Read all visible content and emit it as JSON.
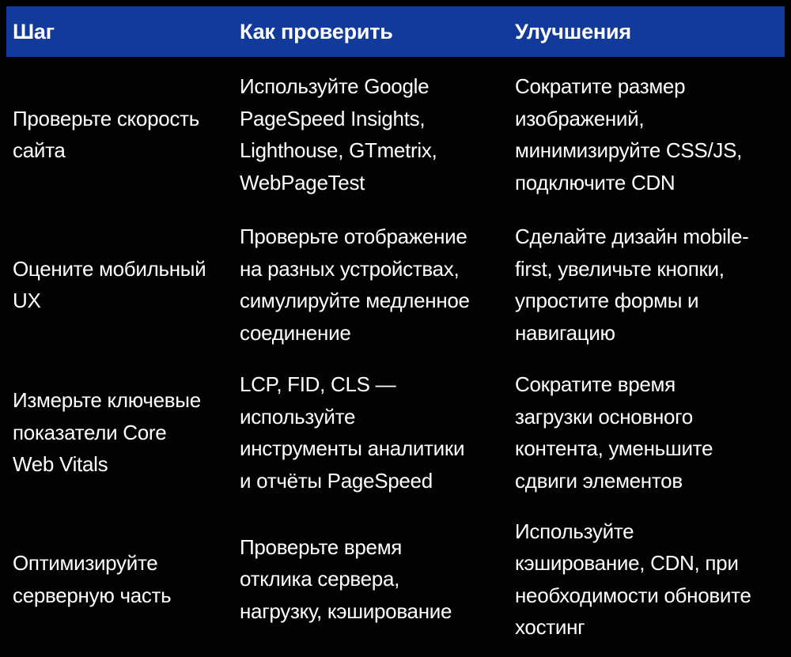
{
  "table": {
    "title": "Website performance audit steps table",
    "colors": {
      "header_bg": "#123A9B",
      "body_bg": "#020202",
      "text": "#FFFFFF"
    },
    "columns": [
      {
        "label": "Шаг"
      },
      {
        "label": "Как проверить"
      },
      {
        "label": "Улучшения"
      }
    ],
    "rows": [
      {
        "step": "Проверьте скорость\nсайта",
        "check": "Используйте Google\nPageSpeed Insights,\nLighthouse, GTmetrix,\nWebPageTest",
        "improve": "Сократите размер\nизображений,\nминимизируйте CSS/JS,\nподключите CDN"
      },
      {
        "step": "Оцените мобильный\nUX",
        "check": "Проверьте отображение\nна разных устройствах,\nсимулируйте медленное\nсоединение",
        "improve": "Сделайте дизайн mobile-\nfirst, увеличьте кнопки,\nупростите формы и\nнавигацию"
      },
      {
        "step": "Измерьте ключевые\nпоказатели Core\nWeb Vitals",
        "check": "LCP, FID, CLS —\nиспользуйте\nинструменты аналитики\nи отчёты PageSpeed",
        "improve": "Сократите время\nзагрузки основного\nконтента, уменьшите\nсдвиги элементов"
      },
      {
        "step": "Оптимизируйте\nсерверную часть",
        "check": "Проверьте время\nотклика сервера,\nнагрузку, кэширование",
        "improve": "Используйте\nкэширование, CDN, при\nнеобходимости обновите\nхостинг"
      }
    ]
  }
}
